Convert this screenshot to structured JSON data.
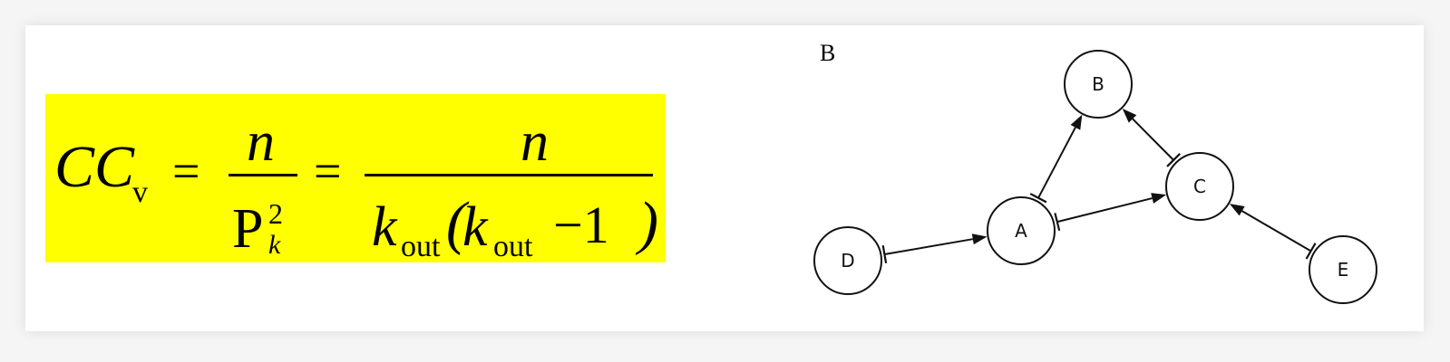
{
  "formula": {
    "cc": "CC",
    "sub_v": "v",
    "eq": "=",
    "numerator": "n",
    "denominator_P": "P",
    "sup_2": "2",
    "sub_k": "k",
    "k": "k",
    "out": "out",
    "lparen": "(",
    "rparen": ")",
    "minus_one": "−1",
    "background": "#ffff00"
  },
  "panel_letter": "B",
  "graph": {
    "nodes": [
      {
        "id": "B",
        "label": "B"
      },
      {
        "id": "C",
        "label": "C"
      },
      {
        "id": "A",
        "label": "A"
      },
      {
        "id": "D",
        "label": "D"
      },
      {
        "id": "E",
        "label": "E"
      }
    ],
    "edges": [
      {
        "from": "A",
        "to": "B",
        "type": "activation"
      },
      {
        "from": "C",
        "to": "B",
        "type": "activation"
      },
      {
        "from": "A",
        "to": "C",
        "type": "activation"
      },
      {
        "from": "D",
        "to": "A",
        "type": "activation"
      },
      {
        "from": "E",
        "to": "C",
        "type": "activation"
      }
    ]
  }
}
